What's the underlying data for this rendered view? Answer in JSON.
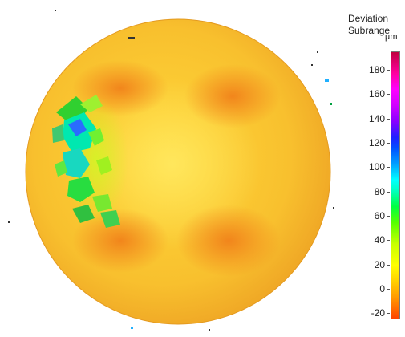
{
  "legend": {
    "title_line1": "Deviation",
    "title_line2": "Subrange",
    "unit": "µm",
    "ticks": [
      "180",
      "160",
      "140",
      "120",
      "100",
      "80",
      "60",
      "40",
      "20",
      "0",
      "-20"
    ],
    "range": [
      -25,
      195
    ],
    "colors": {
      "min": "#ff4400",
      "zero": "#ffd000",
      "mid": "#00ff40",
      "high": "#0050ff",
      "max": "#c00040"
    }
  },
  "view": {
    "object": "circular-part-deviation-map",
    "base_color": "#f5b62a"
  }
}
